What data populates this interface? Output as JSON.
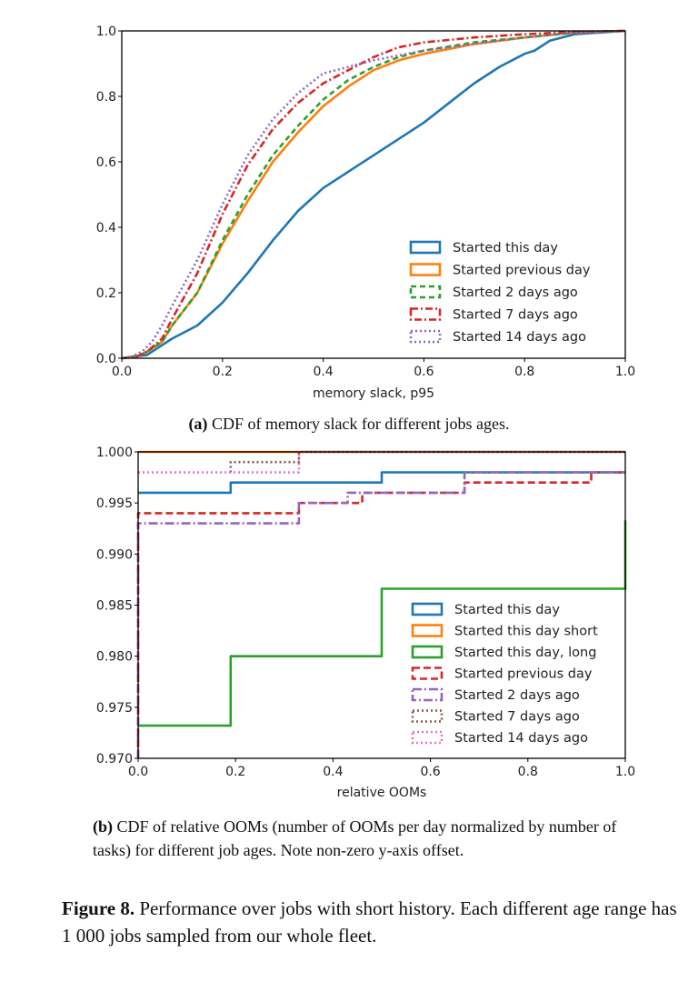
{
  "colors": {
    "blue": "#1f77b4",
    "orange": "#ff7f0e",
    "green": "#2ca02c",
    "red": "#d62728",
    "purple": "#9467bd",
    "brown": "#8c564b",
    "pink": "#e377c2"
  },
  "captions": {
    "a_label": "(a)",
    "a_text": " CDF of memory slack for different jobs ages.",
    "b_label": "(b)",
    "b_text": " CDF of relative OOMs (number of OOMs per day normalized by number of tasks) for different job ages. Note non-zero y-axis offset.",
    "fig_label": "Figure 8.",
    "fig_text": " Performance over jobs with short history. Each different age range has 1 000 jobs sampled from our whole fleet."
  },
  "chart_data": [
    {
      "type": "line",
      "title": "",
      "xlabel": "memory slack, p95",
      "ylabel": "",
      "xlim": [
        0,
        1
      ],
      "ylim": [
        0,
        1
      ],
      "xticks": [
        "0.0",
        "0.2",
        "0.4",
        "0.6",
        "0.8",
        "1.0"
      ],
      "yticks": [
        "0.0",
        "0.2",
        "0.4",
        "0.6",
        "0.8",
        "1.0"
      ],
      "grid": false,
      "legend": "bottom-right",
      "series": [
        {
          "name": "Started this day",
          "color": "#1f77b4",
          "dash": "solid",
          "x": [
            0,
            0.02,
            0.05,
            0.07,
            0.1,
            0.15,
            0.2,
            0.25,
            0.3,
            0.35,
            0.4,
            0.45,
            0.5,
            0.55,
            0.6,
            0.65,
            0.7,
            0.75,
            0.8,
            0.82,
            0.85,
            0.9,
            1.0
          ],
          "y": [
            0,
            0.005,
            0.01,
            0.03,
            0.06,
            0.1,
            0.17,
            0.26,
            0.36,
            0.45,
            0.52,
            0.57,
            0.62,
            0.67,
            0.72,
            0.78,
            0.84,
            0.89,
            0.93,
            0.94,
            0.97,
            0.99,
            1.0
          ]
        },
        {
          "name": "Started previous day",
          "color": "#ff7f0e",
          "dash": "solid",
          "x": [
            0,
            0.03,
            0.05,
            0.08,
            0.1,
            0.15,
            0.2,
            0.25,
            0.3,
            0.35,
            0.4,
            0.45,
            0.5,
            0.55,
            0.6,
            0.7,
            0.8,
            0.9,
            1.0
          ],
          "y": [
            0,
            0.005,
            0.02,
            0.05,
            0.1,
            0.2,
            0.35,
            0.48,
            0.6,
            0.69,
            0.77,
            0.83,
            0.88,
            0.91,
            0.93,
            0.96,
            0.98,
            0.995,
            1.0
          ]
        },
        {
          "name": "Started 2 days ago",
          "color": "#2ca02c",
          "dash": "6,4",
          "x": [
            0,
            0.03,
            0.05,
            0.08,
            0.1,
            0.15,
            0.2,
            0.25,
            0.3,
            0.35,
            0.4,
            0.45,
            0.5,
            0.55,
            0.6,
            0.7,
            0.8,
            0.9,
            1.0
          ],
          "y": [
            0,
            0.005,
            0.02,
            0.05,
            0.1,
            0.2,
            0.36,
            0.5,
            0.62,
            0.71,
            0.79,
            0.85,
            0.89,
            0.92,
            0.94,
            0.965,
            0.98,
            0.995,
            1.0
          ]
        },
        {
          "name": "Started 7 days ago",
          "color": "#d62728",
          "dash": "8,3,2,3",
          "x": [
            0,
            0.03,
            0.05,
            0.08,
            0.1,
            0.15,
            0.2,
            0.25,
            0.3,
            0.35,
            0.4,
            0.45,
            0.5,
            0.55,
            0.6,
            0.7,
            0.8,
            0.9,
            1.0
          ],
          "y": [
            0,
            0.005,
            0.02,
            0.06,
            0.12,
            0.26,
            0.44,
            0.59,
            0.7,
            0.78,
            0.84,
            0.88,
            0.92,
            0.95,
            0.965,
            0.98,
            0.99,
            0.997,
            1.0
          ]
        },
        {
          "name": "Started 14 days ago",
          "color": "#9467bd",
          "dash": "2,3",
          "x": [
            0,
            0.02,
            0.04,
            0.06,
            0.08,
            0.1,
            0.15,
            0.2,
            0.25,
            0.3,
            0.35,
            0.4,
            0.45,
            0.5,
            0.55,
            0.6,
            0.7,
            0.8,
            0.9,
            1.0
          ],
          "y": [
            0,
            0.005,
            0.02,
            0.05,
            0.1,
            0.16,
            0.3,
            0.47,
            0.62,
            0.73,
            0.81,
            0.87,
            0.89,
            0.91,
            0.925,
            0.94,
            0.96,
            0.98,
            0.995,
            1.0
          ]
        }
      ]
    },
    {
      "type": "line",
      "title": "",
      "xlabel": "relative OOMs",
      "ylabel": "",
      "xlim": [
        0,
        1
      ],
      "ylim": [
        0.97,
        1.0
      ],
      "xticks": [
        "0.0",
        "0.2",
        "0.4",
        "0.6",
        "0.8",
        "1.0"
      ],
      "yticks": [
        "0.970",
        "0.975",
        "0.980",
        "0.985",
        "0.990",
        "0.995",
        "1.000"
      ],
      "grid": false,
      "legend": "bottom-right",
      "series": [
        {
          "name": "Started this day",
          "color": "#1f77b4",
          "dash": "solid",
          "x": [
            0,
            0.19,
            0.19,
            0.5,
            0.5,
            1.0
          ],
          "y": [
            0.996,
            0.996,
            0.997,
            0.997,
            0.998,
            0.998
          ]
        },
        {
          "name": "Started this day short",
          "color": "#ff7f0e",
          "dash": "solid",
          "x": [
            0,
            1.0
          ],
          "y": [
            1.0,
            1.0
          ]
        },
        {
          "name": "Started this day, long",
          "color": "#2ca02c",
          "dash": "solid",
          "x": [
            0,
            0.19,
            0.19,
            0.5,
            0.5,
            1.0,
            1.0
          ],
          "y": [
            0.9732,
            0.9732,
            0.98,
            0.98,
            0.9866,
            0.9866,
            0.9933
          ]
        },
        {
          "name": "Started previous day",
          "color": "#d62728",
          "dash": "8,4",
          "x": [
            0,
            0,
            0.33,
            0.33,
            0.46,
            0.46,
            0.67,
            0.67,
            0.93,
            0.93,
            1.0
          ],
          "y": [
            0.97,
            0.994,
            0.994,
            0.995,
            0.995,
            0.996,
            0.996,
            0.997,
            0.997,
            0.998,
            0.998
          ]
        },
        {
          "name": "Started 2 days ago",
          "color": "#9467bd",
          "dash": "10,3,2,3",
          "x": [
            0,
            0,
            0.33,
            0.33,
            0.43,
            0.43,
            0.67,
            0.67,
            1.0
          ],
          "y": [
            0.97,
            0.993,
            0.993,
            0.995,
            0.995,
            0.996,
            0.996,
            0.998,
            0.998
          ]
        },
        {
          "name": "Started 7 days ago",
          "color": "#8c564b",
          "dash": "2,3",
          "x": [
            0.19,
            0.19,
            0.33,
            0.33,
            1.0
          ],
          "y": [
            0.998,
            0.999,
            0.999,
            1.0,
            1.0
          ]
        },
        {
          "name": "Started 14 days ago",
          "color": "#e377c2",
          "dash": "2,3",
          "x": [
            0,
            0.33,
            0.33,
            1.0
          ],
          "y": [
            0.998,
            0.998,
            1.0,
            1.0
          ]
        }
      ]
    }
  ]
}
